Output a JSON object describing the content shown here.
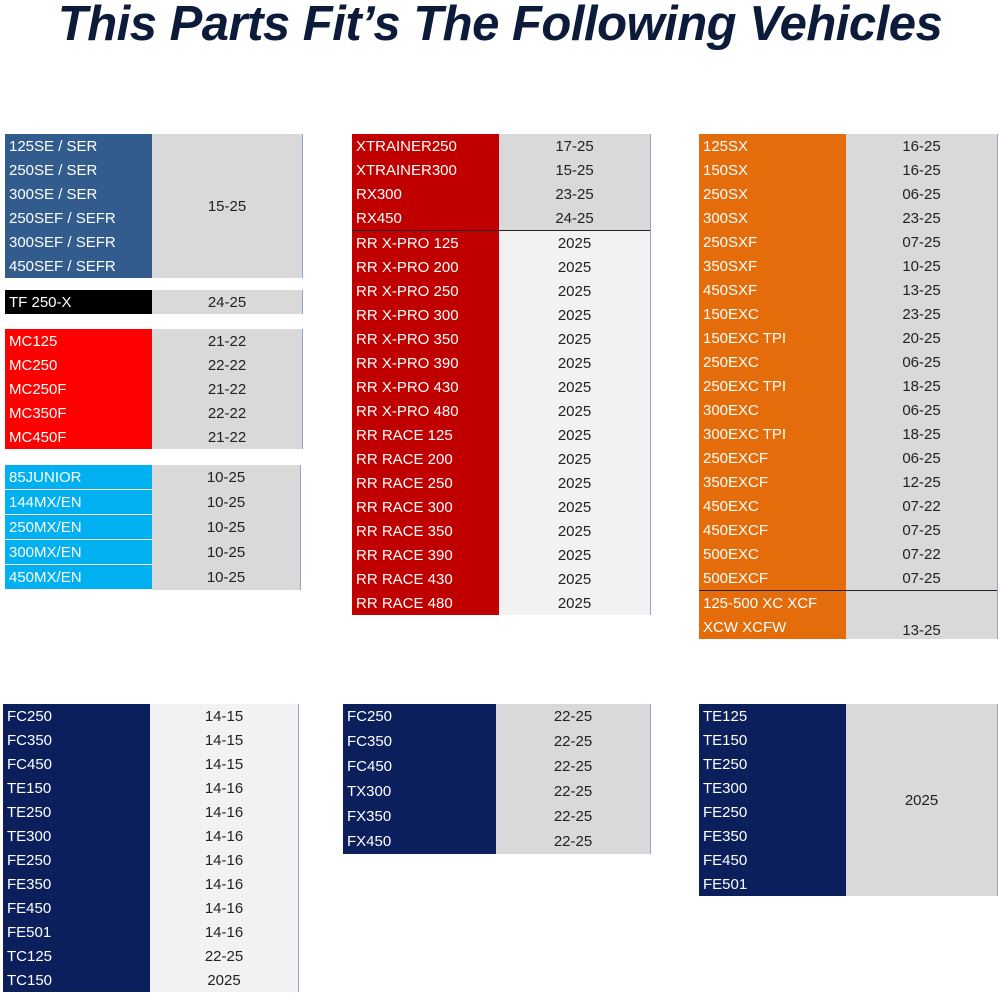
{
  "title": "This Parts Fit’s The Following Vehicles",
  "colors": {
    "ktm_blue": "#335c8e",
    "black": "#000000",
    "red": "#ff0000",
    "light_blue": "#00b0f0",
    "dark_red": "#c00000",
    "orange": "#e46c0a",
    "navy": "#0b1f5c",
    "gray": "#d9d9d9",
    "light_gray": "#f2f2f2"
  },
  "tables": [
    {
      "id": "t1",
      "groups": [
        {
          "models": [
            "125SE / SER",
            "250SE / SER",
            "300SE / SER",
            "250SEF / SEFR",
            "300SEF / SEFR",
            "450SEF / SEFR"
          ],
          "years": "15-25",
          "shade": "g1"
        }
      ]
    },
    {
      "id": "t2",
      "groups": [
        {
          "models": [
            "TF 250-X"
          ],
          "years": "24-25",
          "shade": "g1"
        }
      ]
    },
    {
      "id": "t3",
      "groups": [
        {
          "models": [
            "MC125"
          ],
          "years": "21-22",
          "shade": "g1"
        },
        {
          "models": [
            "MC250"
          ],
          "years": "22-22",
          "shade": "g1"
        },
        {
          "models": [
            "MC250F"
          ],
          "years": "21-22",
          "shade": "g1"
        },
        {
          "models": [
            "MC350F"
          ],
          "years": "22-22",
          "shade": "g1"
        },
        {
          "models": [
            "MC450F"
          ],
          "years": "21-22",
          "shade": "g1"
        }
      ]
    },
    {
      "id": "t4",
      "groups": [
        {
          "models": [
            "85JUNIOR"
          ],
          "years": "10-25",
          "shade": "g1"
        },
        {
          "models": [
            "144MX/EN"
          ],
          "years": "10-25",
          "shade": "g1"
        },
        {
          "models": [
            "250MX/EN"
          ],
          "years": "10-25",
          "shade": "g1"
        },
        {
          "models": [
            "300MX/EN"
          ],
          "years": "10-25",
          "shade": "g1"
        },
        {
          "models": [
            "450MX/EN"
          ],
          "years": "10-25",
          "shade": "g1"
        }
      ]
    },
    {
      "id": "t5",
      "groups": [
        {
          "models": [
            "XTRAINER250"
          ],
          "years": "17-25",
          "shade": "g1"
        },
        {
          "models": [
            "XTRAINER300"
          ],
          "years": "15-25",
          "shade": "g1"
        },
        {
          "models": [
            "RX300"
          ],
          "years": "23-25",
          "shade": "g1"
        },
        {
          "models": [
            "RX450"
          ],
          "years": "24-25",
          "shade": "g1"
        },
        {
          "models": [
            "RR X-PRO 125"
          ],
          "years": "2025",
          "shade": "g2",
          "sep": true
        },
        {
          "models": [
            "RR X-PRO 200"
          ],
          "years": "2025",
          "shade": "g2"
        },
        {
          "models": [
            "RR X-PRO 250"
          ],
          "years": "2025",
          "shade": "g2"
        },
        {
          "models": [
            "RR X-PRO 300"
          ],
          "years": "2025",
          "shade": "g2"
        },
        {
          "models": [
            "RR X-PRO 350"
          ],
          "years": "2025",
          "shade": "g2"
        },
        {
          "models": [
            "RR X-PRO 390"
          ],
          "years": "2025",
          "shade": "g2"
        },
        {
          "models": [
            "RR X-PRO 430"
          ],
          "years": "2025",
          "shade": "g2"
        },
        {
          "models": [
            "RR X-PRO 480"
          ],
          "years": "2025",
          "shade": "g2"
        },
        {
          "models": [
            "RR RACE 125"
          ],
          "years": "2025",
          "shade": "g2"
        },
        {
          "models": [
            "RR RACE 200"
          ],
          "years": "2025",
          "shade": "g2"
        },
        {
          "models": [
            "RR RACE 250"
          ],
          "years": "2025",
          "shade": "g2"
        },
        {
          "models": [
            "RR RACE 300"
          ],
          "years": "2025",
          "shade": "g2"
        },
        {
          "models": [
            "RR RACE 350"
          ],
          "years": "2025",
          "shade": "g2"
        },
        {
          "models": [
            "RR RACE 390"
          ],
          "years": "2025",
          "shade": "g2"
        },
        {
          "models": [
            "RR RACE 430"
          ],
          "years": "2025",
          "shade": "g2"
        },
        {
          "models": [
            "RR RACE 480"
          ],
          "years": "2025",
          "shade": "g2"
        }
      ]
    },
    {
      "id": "t6",
      "groups": [
        {
          "models": [
            "125SX"
          ],
          "years": "16-25",
          "shade": "g1"
        },
        {
          "models": [
            "150SX"
          ],
          "years": "16-25",
          "shade": "g1"
        },
        {
          "models": [
            "250SX"
          ],
          "years": "06-25",
          "shade": "g1"
        },
        {
          "models": [
            "300SX"
          ],
          "years": "23-25",
          "shade": "g1"
        },
        {
          "models": [
            "250SXF"
          ],
          "years": "07-25",
          "shade": "g1"
        },
        {
          "models": [
            "350SXF"
          ],
          "years": "10-25",
          "shade": "g1"
        },
        {
          "models": [
            "450SXF"
          ],
          "years": "13-25",
          "shade": "g1"
        },
        {
          "models": [
            "150EXC"
          ],
          "years": "23-25",
          "shade": "g1"
        },
        {
          "models": [
            "150EXC TPI"
          ],
          "years": "20-25",
          "shade": "g1"
        },
        {
          "models": [
            "250EXC"
          ],
          "years": "06-25",
          "shade": "g1"
        },
        {
          "models": [
            "250EXC TPI"
          ],
          "years": "18-25",
          "shade": "g1"
        },
        {
          "models": [
            "300EXC"
          ],
          "years": "06-25",
          "shade": "g1"
        },
        {
          "models": [
            "300EXC TPI"
          ],
          "years": "18-25",
          "shade": "g1"
        },
        {
          "models": [
            "250EXCF"
          ],
          "years": "06-25",
          "shade": "g1"
        },
        {
          "models": [
            "350EXCF"
          ],
          "years": "12-25",
          "shade": "g1"
        },
        {
          "models": [
            "450EXC"
          ],
          "years": "07-22",
          "shade": "g1"
        },
        {
          "models": [
            "450EXCF"
          ],
          "years": "07-25",
          "shade": "g1"
        },
        {
          "models": [
            "500EXC"
          ],
          "years": "07-22",
          "shade": "g1"
        },
        {
          "models": [
            "500EXCF"
          ],
          "years": "07-25",
          "shade": "g1"
        },
        {
          "models": [
            "125-500 XC XCF",
            "XCW XCFW"
          ],
          "years": "13-25",
          "shade": "g1",
          "sep": true,
          "valign": "bottom"
        }
      ]
    },
    {
      "id": "t7",
      "groups": [
        {
          "models": [
            "FC250"
          ],
          "years": "14-15",
          "shade": "g2"
        },
        {
          "models": [
            "FC350"
          ],
          "years": "14-15",
          "shade": "g2"
        },
        {
          "models": [
            "FC450"
          ],
          "years": "14-15",
          "shade": "g2"
        },
        {
          "models": [
            "TE150"
          ],
          "years": "14-16",
          "shade": "g2"
        },
        {
          "models": [
            "TE250"
          ],
          "years": "14-16",
          "shade": "g2"
        },
        {
          "models": [
            "TE300"
          ],
          "years": "14-16",
          "shade": "g2"
        },
        {
          "models": [
            "FE250"
          ],
          "years": "14-16",
          "shade": "g2"
        },
        {
          "models": [
            "FE350"
          ],
          "years": "14-16",
          "shade": "g2"
        },
        {
          "models": [
            "FE450"
          ],
          "years": "14-16",
          "shade": "g2"
        },
        {
          "models": [
            "FE501"
          ],
          "years": "14-16",
          "shade": "g2"
        },
        {
          "models": [
            "TC125"
          ],
          "years": "22-25",
          "shade": "g2"
        },
        {
          "models": [
            "TC150"
          ],
          "years": "2025",
          "shade": "g2"
        }
      ]
    },
    {
      "id": "t8",
      "groups": [
        {
          "models": [
            "FC250"
          ],
          "years": "22-25",
          "shade": "g1"
        },
        {
          "models": [
            "FC350"
          ],
          "years": "22-25",
          "shade": "g1"
        },
        {
          "models": [
            "FC450"
          ],
          "years": "22-25",
          "shade": "g1"
        },
        {
          "models": [
            "TX300"
          ],
          "years": "22-25",
          "shade": "g1"
        },
        {
          "models": [
            "FX350"
          ],
          "years": "22-25",
          "shade": "g1"
        },
        {
          "models": [
            "FX450"
          ],
          "years": "22-25",
          "shade": "g1"
        }
      ]
    },
    {
      "id": "t9",
      "groups": [
        {
          "models": [
            "TE125",
            "TE150",
            "TE250",
            "TE300",
            "FE250",
            "FE350",
            "FE450",
            "FE501"
          ],
          "years": "2025",
          "shade": "g1"
        }
      ]
    }
  ]
}
